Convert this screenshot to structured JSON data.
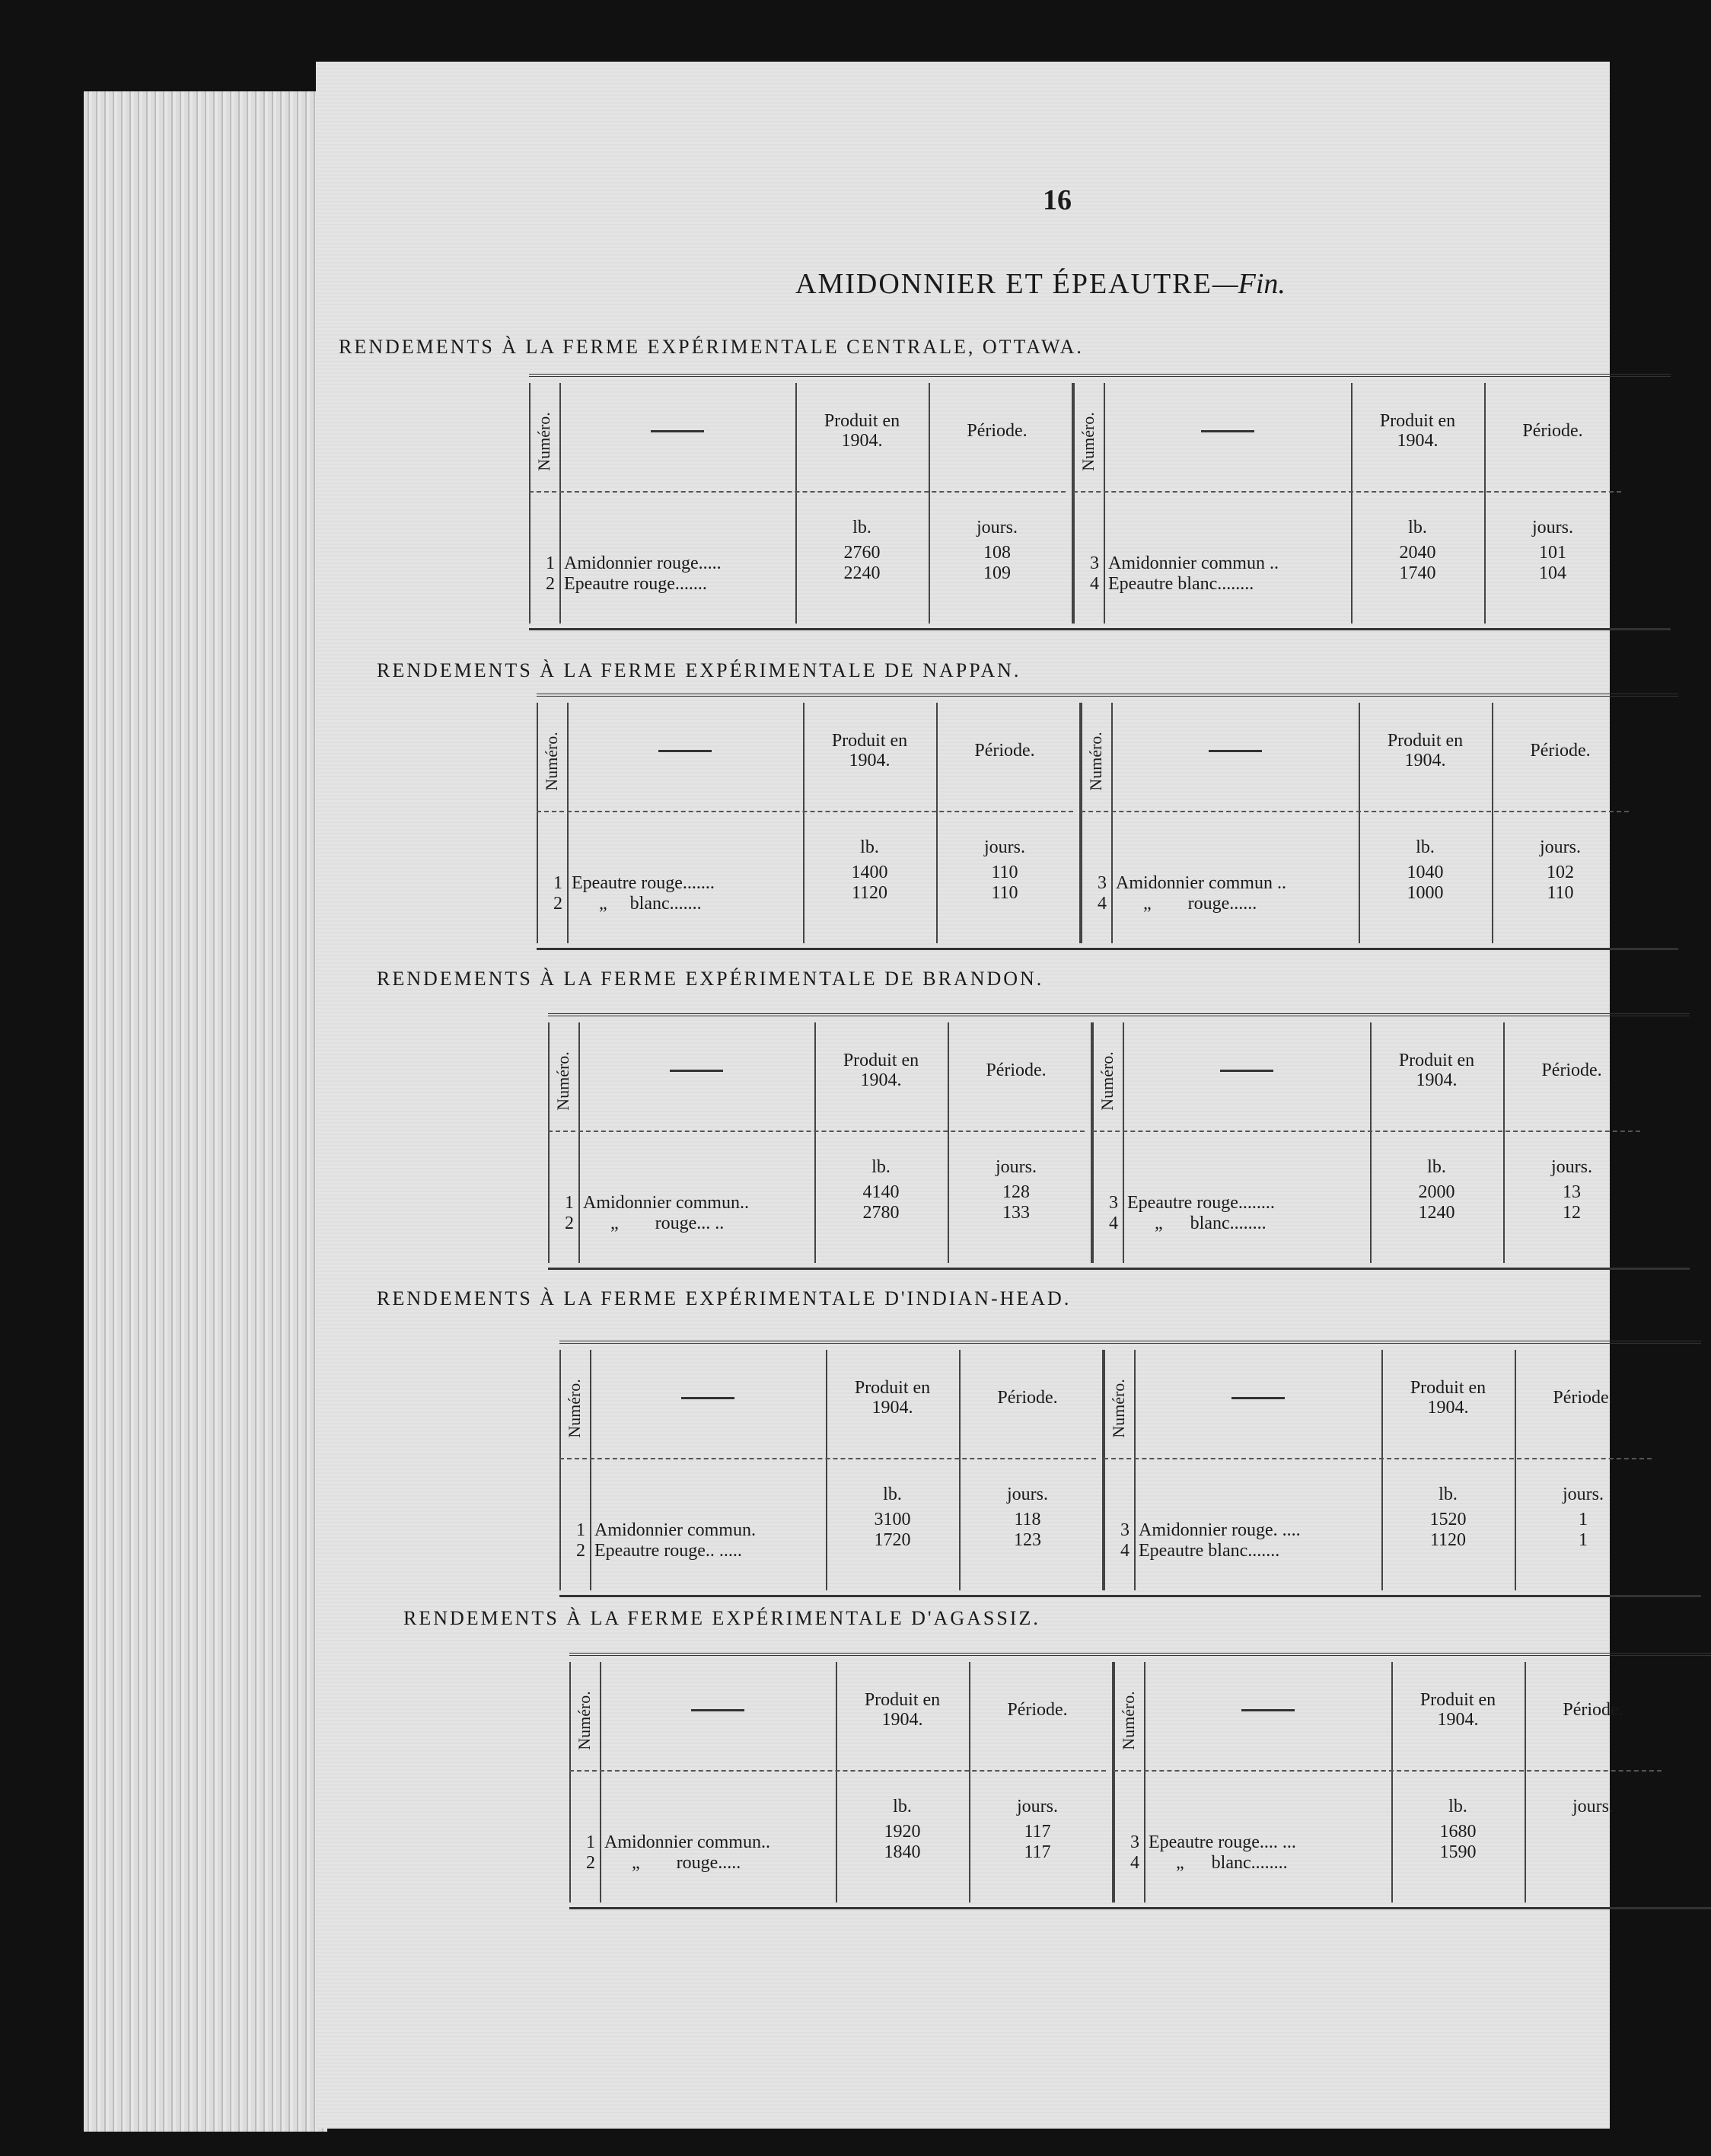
{
  "page_number": "16",
  "title": "AMIDONNIER ET ÉPEAUTRE",
  "title_suffix": "—Fin.",
  "headers": {
    "numero": "Numéro.",
    "dash": "——",
    "produit_line1": "Produit en",
    "produit_line2": "1904.",
    "periode": "Période.",
    "unit_lb": "lb.",
    "unit_jours": "jours."
  },
  "tables": [
    {
      "heading": "RENDEMENTS À LA FERME EXPÉRIMENTALE CENTRALE, OTTAWA.",
      "left": [
        {
          "no": "1",
          "name": "Amidonnier rouge.....",
          "lb": "2760",
          "jours": "108"
        },
        {
          "no": "2",
          "name": "Epeautre rouge.......",
          "lb": "2240",
          "jours": "109"
        }
      ],
      "right": [
        {
          "no": "3",
          "name": "Amidonnier commun ..",
          "lb": "2040",
          "jours": "101"
        },
        {
          "no": "4",
          "name": "Epeautre blanc........",
          "lb": "1740",
          "jours": "104"
        }
      ]
    },
    {
      "heading": "RENDEMENTS À LA FERME EXPÉRIMENTALE DE NAPPAN.",
      "left": [
        {
          "no": "1",
          "name": "Epeautre rouge.......",
          "lb": "1400",
          "jours": "110"
        },
        {
          "no": "2",
          "name": "      „     blanc.......",
          "lb": "1120",
          "jours": "110"
        }
      ],
      "right": [
        {
          "no": "3",
          "name": "Amidonnier commun ..",
          "lb": "1040",
          "jours": "102"
        },
        {
          "no": "4",
          "name": "      „        rouge......",
          "lb": "1000",
          "jours": "110"
        }
      ]
    },
    {
      "heading": "RENDEMENTS À LA FERME EXPÉRIMENTALE DE BRANDON.",
      "left": [
        {
          "no": "1",
          "name": "Amidonnier commun..",
          "lb": "4140",
          "jours": "128"
        },
        {
          "no": "2",
          "name": "      „        rouge... ..",
          "lb": "2780",
          "jours": "133"
        }
      ],
      "right": [
        {
          "no": "3",
          "name": "Epeautre rouge........",
          "lb": "2000",
          "jours": "13"
        },
        {
          "no": "4",
          "name": "      „      blanc........",
          "lb": "1240",
          "jours": "12"
        }
      ]
    },
    {
      "heading": "RENDEMENTS À LA FERME EXPÉRIMENTALE D'INDIAN-HEAD.",
      "left": [
        {
          "no": "1",
          "name": "Amidonnier commun.",
          "lb": "3100",
          "jours": "118"
        },
        {
          "no": "2",
          "name": "Epeautre rouge.. .....",
          "lb": "1720",
          "jours": "123"
        }
      ],
      "right": [
        {
          "no": "3",
          "name": "Amidonnier rouge. ....",
          "lb": "1520",
          "jours": "1"
        },
        {
          "no": "4",
          "name": "Epeautre blanc.......",
          "lb": "1120",
          "jours": "1"
        }
      ]
    },
    {
      "heading": "RENDEMENTS À LA FERME EXPÉRIMENTALE D'AGASSIZ.",
      "left": [
        {
          "no": "1",
          "name": "Amidonnier commun..",
          "lb": "1920",
          "jours": "117"
        },
        {
          "no": "2",
          "name": "      „        rouge.....",
          "lb": "1840",
          "jours": "117"
        }
      ],
      "right": [
        {
          "no": "3",
          "name": "Epeautre rouge.... ...",
          "lb": "1680",
          "jours": ""
        },
        {
          "no": "4",
          "name": "      „      blanc........",
          "lb": "1590",
          "jours": ""
        }
      ]
    }
  ]
}
